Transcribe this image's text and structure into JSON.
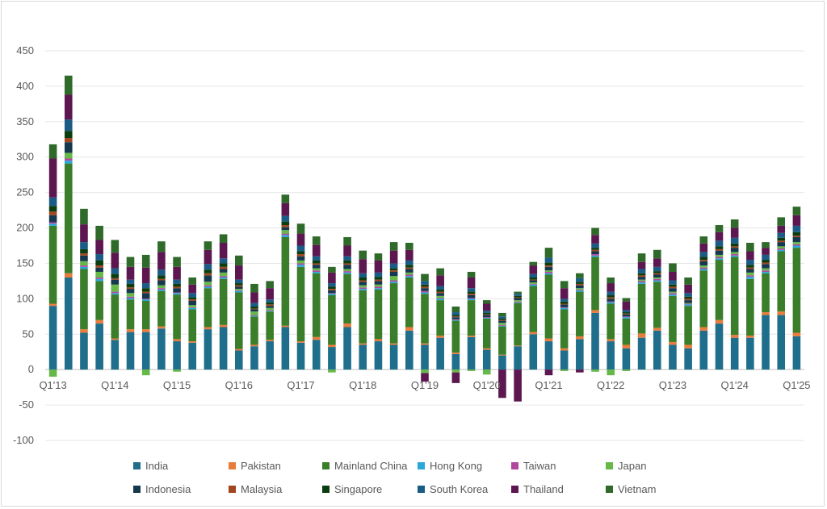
{
  "chart_data": {
    "type": "bar",
    "stacked": true,
    "title": "",
    "xlabel": "",
    "ylabel": "",
    "ylim": [
      -100,
      450
    ],
    "y_ticks": [
      -100,
      -50,
      0,
      50,
      100,
      150,
      200,
      250,
      300,
      350,
      400,
      450
    ],
    "grid": "horizontal",
    "legend_position": "bottom",
    "categories": [
      "Q1'13",
      "Q2'13",
      "Q3'13",
      "Q4'13",
      "Q1'14",
      "Q2'14",
      "Q3'14",
      "Q4'14",
      "Q1'15",
      "Q2'15",
      "Q3'15",
      "Q4'15",
      "Q1'16",
      "Q2'16",
      "Q3'16",
      "Q4'16",
      "Q1'17",
      "Q2'17",
      "Q3'17",
      "Q4'17",
      "Q1'18",
      "Q2'18",
      "Q3'18",
      "Q4'18",
      "Q1'19",
      "Q2'19",
      "Q3'19",
      "Q4'19",
      "Q1'20",
      "Q2'20",
      "Q3'20",
      "Q4'20",
      "Q1'21",
      "Q2'21",
      "Q3'21",
      "Q4'21",
      "Q1'22",
      "Q2'22",
      "Q3'22",
      "Q4'22",
      "Q1'23",
      "Q2'23",
      "Q3'23",
      "Q4'23",
      "Q1'24",
      "Q2'24",
      "Q3'24",
      "Q4'24",
      "Q1'25"
    ],
    "x_tick_labels": [
      "Q1'13",
      "Q1'14",
      "Q1'15",
      "Q1'16",
      "Q1'17",
      "Q1'18",
      "Q1'19",
      "Q1'20",
      "Q1'21",
      "Q1'22",
      "Q1'23",
      "Q1'24",
      "Q1'25"
    ],
    "x_tick_interval": 4,
    "series": [
      {
        "name": "India",
        "color": "#1f6e8c",
        "values": [
          90,
          130,
          52,
          65,
          42,
          53,
          53,
          58,
          40,
          38,
          57,
          60,
          27,
          33,
          40,
          60,
          38,
          42,
          32,
          60,
          35,
          40,
          35,
          55,
          35,
          45,
          22,
          46,
          28,
          20,
          33,
          50,
          40,
          27,
          43,
          80,
          40,
          30,
          45,
          55,
          35,
          30,
          55,
          65,
          45,
          45,
          77,
          77,
          47
        ]
      },
      {
        "name": "Pakistan",
        "color": "#e97c3c",
        "values": [
          3,
          6,
          5,
          5,
          2,
          4,
          4,
          3,
          3,
          2,
          3,
          3,
          2,
          2,
          2,
          2,
          2,
          4,
          3,
          5,
          2,
          3,
          2,
          5,
          2,
          3,
          2,
          2,
          2,
          1,
          1,
          3,
          4,
          3,
          4,
          4,
          3,
          5,
          6,
          4,
          4,
          5,
          5,
          5,
          4,
          3,
          4,
          5,
          5
        ]
      },
      {
        "name": "Mainland China",
        "color": "#3a7d2a",
        "values": [
          110,
          155,
          85,
          55,
          62,
          42,
          40,
          50,
          63,
          45,
          55,
          65,
          80,
          40,
          40,
          125,
          105,
          90,
          70,
          70,
          75,
          70,
          85,
          70,
          70,
          50,
          45,
          50,
          42,
          40,
          60,
          65,
          90,
          55,
          63,
          75,
          50,
          37,
          70,
          65,
          65,
          55,
          80,
          85,
          110,
          80,
          55,
          85,
          120
        ]
      },
      {
        "name": "Hong Kong",
        "color": "#2aa8d8",
        "values": [
          3,
          4,
          3,
          3,
          2,
          2,
          2,
          2,
          2,
          2,
          2,
          2,
          2,
          1,
          1,
          3,
          3,
          2,
          2,
          2,
          2,
          2,
          2,
          2,
          2,
          2,
          1,
          2,
          1,
          1,
          1,
          2,
          2,
          2,
          2,
          2,
          2,
          2,
          2,
          2,
          2,
          2,
          2,
          2,
          2,
          3,
          2,
          2,
          3
        ]
      },
      {
        "name": "Taiwan",
        "color": "#b0489e",
        "values": [
          2,
          3,
          2,
          2,
          2,
          2,
          1,
          2,
          1,
          1,
          2,
          2,
          1,
          1,
          1,
          2,
          2,
          2,
          1,
          2,
          2,
          2,
          2,
          2,
          2,
          1,
          1,
          1,
          1,
          1,
          1,
          1,
          2,
          1,
          1,
          2,
          1,
          1,
          2,
          2,
          2,
          1,
          2,
          2,
          2,
          2,
          2,
          2,
          2
        ]
      },
      {
        "name": "Japan",
        "color": "#66b849",
        "values": [
          -10,
          8,
          6,
          8,
          10,
          5,
          -8,
          4,
          -3,
          3,
          5,
          5,
          2,
          5,
          3,
          5,
          4,
          3,
          -4,
          3,
          3,
          3,
          6,
          3,
          -5,
          3,
          -4,
          -2,
          -7,
          3,
          2,
          2,
          2,
          -2,
          2,
          -3,
          -8,
          -2,
          2,
          2,
          2,
          1,
          3,
          3,
          3,
          4,
          3,
          3,
          3
        ]
      },
      {
        "name": "Indonesia",
        "color": "#16384f",
        "values": [
          10,
          15,
          8,
          6,
          7,
          6,
          8,
          7,
          6,
          6,
          9,
          5,
          3,
          3,
          3,
          4,
          6,
          5,
          4,
          6,
          5,
          5,
          6,
          5,
          4,
          4,
          3,
          4,
          3,
          3,
          3,
          3,
          5,
          4,
          4,
          4,
          4,
          3,
          4,
          4,
          5,
          4,
          6,
          6,
          6,
          5,
          6,
          6,
          7
        ]
      },
      {
        "name": "Malaysia",
        "color": "#a2461f",
        "values": [
          5,
          6,
          3,
          3,
          2,
          2,
          2,
          2,
          2,
          2,
          3,
          3,
          2,
          1,
          2,
          3,
          3,
          2,
          2,
          2,
          2,
          2,
          2,
          2,
          2,
          2,
          1,
          2,
          1,
          1,
          1,
          1,
          2,
          1,
          2,
          2,
          2,
          1,
          2,
          2,
          2,
          2,
          2,
          2,
          2,
          2,
          2,
          2,
          2
        ]
      },
      {
        "name": "Singapore",
        "color": "#0b3d0f",
        "values": [
          8,
          10,
          6,
          7,
          6,
          5,
          5,
          5,
          4,
          3,
          5,
          5,
          3,
          3,
          3,
          5,
          4,
          4,
          3,
          4,
          4,
          4,
          3,
          4,
          3,
          3,
          2,
          3,
          2,
          2,
          2,
          3,
          4,
          3,
          3,
          3,
          3,
          2,
          3,
          3,
          3,
          3,
          4,
          4,
          4,
          4,
          4,
          4,
          5
        ]
      },
      {
        "name": "South Korea",
        "color": "#1a5c85",
        "values": [
          12,
          16,
          10,
          9,
          8,
          6,
          7,
          8,
          6,
          6,
          8,
          7,
          5,
          5,
          4,
          8,
          8,
          6,
          5,
          6,
          6,
          6,
          7,
          6,
          5,
          5,
          4,
          5,
          3,
          3,
          3,
          5,
          7,
          4,
          5,
          6,
          5,
          3,
          6,
          6,
          6,
          5,
          7,
          8,
          8,
          7,
          7,
          7,
          9
        ]
      },
      {
        "name": "Thailand",
        "color": "#5c1650",
        "values": [
          55,
          35,
          25,
          20,
          22,
          18,
          22,
          25,
          18,
          12,
          20,
          22,
          20,
          15,
          16,
          18,
          17,
          16,
          15,
          15,
          20,
          17,
          18,
          15,
          -12,
          15,
          -15,
          15,
          10,
          -40,
          -45,
          12,
          -8,
          15,
          -4,
          12,
          12,
          12,
          10,
          12,
          12,
          12,
          12,
          12,
          14,
          12,
          10,
          10,
          15
        ]
      },
      {
        "name": "Vietnam",
        "color": "#2f6a2a",
        "values": [
          20,
          27,
          22,
          20,
          18,
          14,
          18,
          15,
          14,
          10,
          12,
          12,
          14,
          12,
          10,
          12,
          14,
          12,
          8,
          12,
          12,
          10,
          12,
          10,
          10,
          10,
          8,
          8,
          5,
          5,
          3,
          5,
          14,
          10,
          7,
          10,
          8,
          5,
          12,
          12,
          12,
          10,
          10,
          10,
          12,
          12,
          8,
          12,
          12
        ]
      }
    ]
  }
}
